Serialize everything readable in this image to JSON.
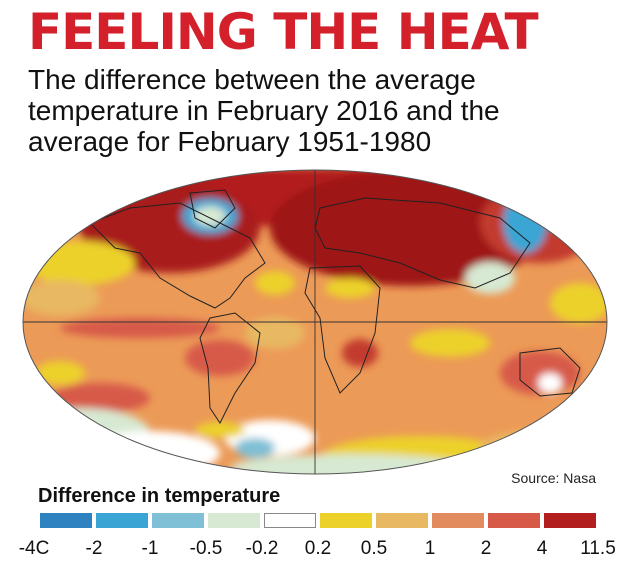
{
  "title": "FEELING THE HEAT",
  "subtitle": "The difference between the average temperature in February 2016 and the average for February 1951-1980",
  "source": "Source: Nasa",
  "legend": {
    "title": "Difference in temperature",
    "colors": [
      "#2e82c0",
      "#3aa5d4",
      "#7fc0d6",
      "#d7e9d2",
      "#ffffff",
      "#ecd12b",
      "#e8b862",
      "#e28b5e",
      "#d75a48",
      "#b21e1e"
    ],
    "ticks": [
      "-4C",
      "-2",
      "-1",
      "-0.5",
      "-0.2",
      "0.2",
      "0.5",
      "1",
      "2",
      "4",
      "11.5"
    ]
  },
  "colors": {
    "headline": "#d3202b",
    "map_base": "#ec9a57"
  }
}
